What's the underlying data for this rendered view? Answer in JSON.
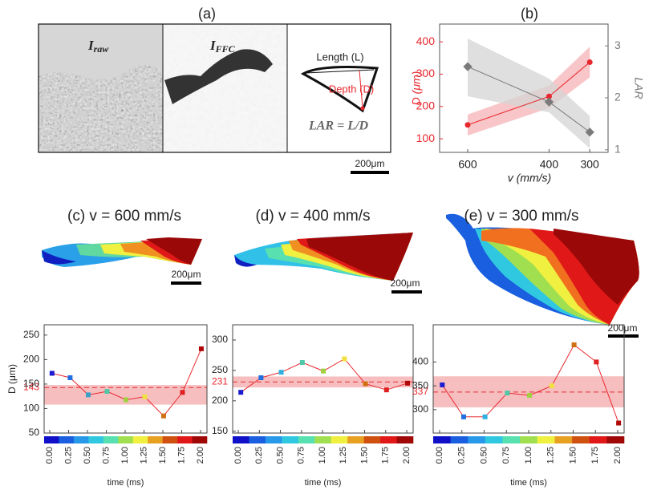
{
  "panel_a": {
    "label": "(a)",
    "raw": {
      "symbol": "I",
      "subscript": "raw"
    },
    "ffc": {
      "symbol": "I",
      "subscript": "FFC"
    },
    "length_label": "Length (L)",
    "depth_label": "Depth (D)",
    "formula": "LAR = L/D",
    "scale": "200μm"
  },
  "melt_pools": {
    "scale_c": "200μm",
    "scale_d": "200μm",
    "scale_e": "200μm"
  },
  "chart_data": [
    {
      "type": "dual_line",
      "label": "(b)",
      "xlabel": "v (mm/s)",
      "ylabel": "D (μm)",
      "y2label": "LAR",
      "x": [
        600,
        400,
        300
      ],
      "xlim": [
        669,
        255
      ],
      "xticks": [
        600,
        400,
        300
      ],
      "ylim": [
        58,
        455
      ],
      "yticks": [
        100,
        200,
        300,
        400
      ],
      "y2lim": [
        0.95,
        3.42
      ],
      "y2ticks": [
        1,
        2,
        3
      ],
      "series": [
        {
          "color": "#e8282e",
          "band_color": "#f6b3b5",
          "values": [
            143,
            231,
            337
          ],
          "band_low": [
            110,
            195,
            290
          ],
          "band_high": [
            175,
            265,
            385
          ]
        },
        {
          "color": "#7a7a7a",
          "band_color": "#d4d4d4",
          "axis": "y2",
          "values": [
            2.6,
            1.92,
            1.34
          ],
          "band_low": [
            2.03,
            1.72,
            1.03
          ],
          "band_high": [
            3.14,
            2.37,
            1.65
          ]
        }
      ]
    },
    {
      "type": "time_line",
      "title": "(c) v = 600 mm/s",
      "xlabel": "time (ms)",
      "ylabel": "D (μm)",
      "x": [
        0.03,
        0.27,
        0.51,
        0.76,
        1.01,
        1.26,
        1.51,
        1.76,
        2.01
      ],
      "values": [
        172,
        163,
        128,
        135,
        118,
        124,
        85,
        133,
        222
      ],
      "point_colors": [
        "#1a1ad0",
        "#1f6fe0",
        "#3aa0c8",
        "#50c8a8",
        "#a0d040",
        "#f0e040",
        "#d07010",
        "#e02020",
        "#b00808"
      ],
      "line_color": "#e8282e",
      "mean": 143,
      "band": [
        108,
        148
      ],
      "xlim": [
        -0.075,
        2.085
      ],
      "xticks": [
        {
          "value": 0,
          "label": "0.00"
        },
        {
          "value": 0.25,
          "label": "0.25"
        },
        {
          "value": 0.5,
          "label": "0.50"
        },
        {
          "value": 0.75,
          "label": "0.75"
        },
        {
          "value": 1,
          "label": "1.00"
        },
        {
          "value": 1.25,
          "label": "1.25"
        },
        {
          "value": 1.5,
          "label": "1.50"
        },
        {
          "value": 1.75,
          "label": "1.75"
        },
        {
          "value": 2,
          "label": "2.00"
        }
      ],
      "ylim": [
        50,
        271
      ],
      "yticks": [
        50,
        100,
        150,
        200,
        250
      ],
      "colorbar": [
        "#1010c8",
        "#1a5fe0",
        "#2898e8",
        "#30c8e0",
        "#58e0b0",
        "#a0e050",
        "#f0f040",
        "#e8a020",
        "#d05010",
        "#e01818",
        "#a00808"
      ]
    },
    {
      "type": "time_line",
      "title": "(d) v = 400 mm/s",
      "xlabel": "time (ms)",
      "x": [
        0.03,
        0.27,
        0.51,
        0.76,
        1.01,
        1.26,
        1.51,
        1.76,
        2.01
      ],
      "values": [
        214,
        238,
        247,
        263,
        249,
        269,
        228,
        218,
        229
      ],
      "point_colors": [
        "#1a1ad0",
        "#1f6fe0",
        "#30b0e0",
        "#50c8a8",
        "#a0d040",
        "#f0e040",
        "#d07010",
        "#e02020",
        "#b00808"
      ],
      "line_color": "#e8282e",
      "mean": 231,
      "band": [
        222,
        240
      ],
      "xlim": [
        -0.067,
        2.076
      ],
      "xticks": [
        {
          "value": 0,
          "label": "0.00"
        },
        {
          "value": 0.25,
          "label": "0.25"
        },
        {
          "value": 0.5,
          "label": "0.50"
        },
        {
          "value": 0.75,
          "label": "0.75"
        },
        {
          "value": 1,
          "label": "1.00"
        },
        {
          "value": 1.25,
          "label": "1.25"
        },
        {
          "value": 1.5,
          "label": "1.50"
        },
        {
          "value": 1.75,
          "label": "1.75"
        },
        {
          "value": 2,
          "label": "2.00"
        }
      ],
      "ylim": [
        147,
        325
      ],
      "yticks": [
        150,
        200,
        250,
        300
      ],
      "colorbar": [
        "#1010c8",
        "#1a5fe0",
        "#2898e8",
        "#30c8e0",
        "#58e0b0",
        "#a0e050",
        "#f0f040",
        "#e8a020",
        "#d05010",
        "#e01818",
        "#a00808"
      ]
    },
    {
      "type": "time_line",
      "title": "(e) v = 300 mm/s",
      "xlabel": "time (ms)",
      "x": [
        0.03,
        0.27,
        0.51,
        0.76,
        1.01,
        1.26,
        1.51,
        1.76,
        2.01
      ],
      "values": [
        352,
        285,
        285,
        335,
        330,
        350,
        436,
        400,
        272
      ],
      "point_colors": [
        "#1a1ad0",
        "#1f6fe0",
        "#30b0e0",
        "#50c8a8",
        "#a0d040",
        "#f0e040",
        "#d07010",
        "#e02020",
        "#b00808"
      ],
      "line_color": "#e8282e",
      "mean": 337,
      "band": [
        305,
        370
      ],
      "xlim": [
        -0.072,
        2.072
      ],
      "xticks": [
        {
          "value": 0,
          "label": "0.00"
        },
        {
          "value": 0.25,
          "label": "0.25"
        },
        {
          "value": 0.5,
          "label": "0.50"
        },
        {
          "value": 0.75,
          "label": "0.75"
        },
        {
          "value": 1,
          "label": "1.00"
        },
        {
          "value": 1.25,
          "label": "1.25"
        },
        {
          "value": 1.5,
          "label": "1.50"
        },
        {
          "value": 1.75,
          "label": "1.75"
        },
        {
          "value": 2,
          "label": "2.00"
        }
      ],
      "ylim": [
        251,
        478
      ],
      "yticks": [
        300,
        350,
        400
      ],
      "colorbar": [
        "#1010c8",
        "#1a5fe0",
        "#2898e8",
        "#30c8e0",
        "#58e0b0",
        "#a0e050",
        "#f0f040",
        "#e8a020",
        "#d05010",
        "#e01818",
        "#a00808"
      ]
    }
  ]
}
